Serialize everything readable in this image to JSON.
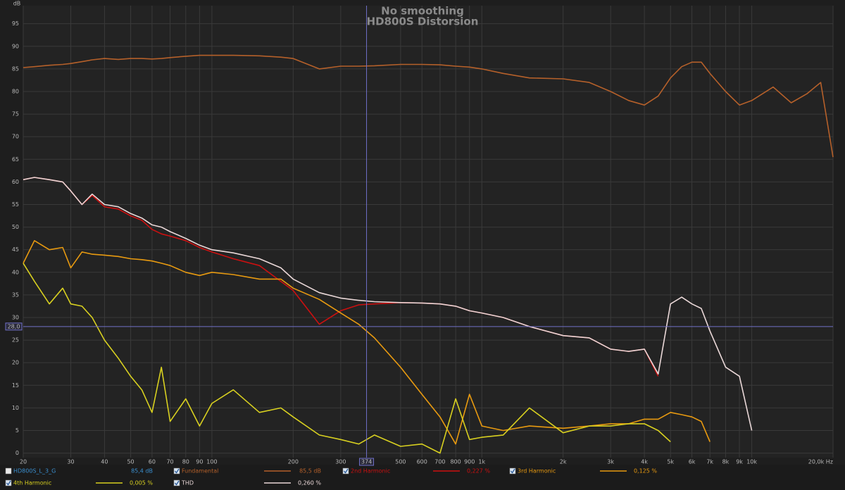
{
  "chart_data": {
    "type": "line",
    "title": "No smoothing",
    "subtitle": "HD800S Distorsion",
    "y_label": "dB",
    "x_scale": "log",
    "grid": true,
    "xlim": [
      20,
      20000
    ],
    "ylim": [
      -1,
      99
    ],
    "yticks": [
      0,
      5,
      10,
      15,
      20,
      25,
      30,
      35,
      40,
      45,
      50,
      55,
      60,
      65,
      70,
      75,
      80,
      85,
      90,
      95
    ],
    "xticks": [
      20,
      30,
      40,
      50,
      60,
      70,
      80,
      90,
      100,
      200,
      300,
      500,
      600,
      700,
      800,
      900,
      {
        "value": 1000,
        "label": "1k"
      },
      {
        "value": 2000,
        "label": "2k"
      },
      {
        "value": 3000,
        "label": "3k"
      },
      {
        "value": 4000,
        "label": "4k"
      },
      {
        "value": 5000,
        "label": "5k"
      },
      {
        "value": 6000,
        "label": "6k"
      },
      {
        "value": 7000,
        "label": "7k"
      },
      {
        "value": 8000,
        "label": "8k"
      },
      {
        "value": 9000,
        "label": "9k"
      },
      {
        "value": 10000,
        "label": "10k"
      },
      {
        "value": 20000,
        "label": "20,0k Hz"
      }
    ],
    "cursor": {
      "x": 374,
      "y": 28,
      "x_label": "374",
      "y_label": "28,0",
      "color": "#7070c8"
    },
    "measurement": {
      "name": "HD800S_L_3_G",
      "readout": "85,4 dB",
      "color": "#3a8fd0"
    },
    "x": [
      20,
      22,
      25,
      28,
      30,
      33,
      36,
      40,
      45,
      50,
      55,
      60,
      65,
      70,
      80,
      90,
      100,
      120,
      150,
      180,
      200,
      250,
      300,
      350,
      400,
      500,
      600,
      700,
      800,
      900,
      1000,
      1200,
      1500,
      2000,
      2500,
      3000,
      3500,
      4000,
      4500,
      5000,
      5500,
      6000,
      6500,
      7000,
      8000,
      9000,
      10000,
      12000,
      14000,
      16000,
      18000,
      20000
    ],
    "series": [
      {
        "name": "Fundamental",
        "readout": "85,5 dB",
        "color": "#b5602a",
        "values": [
          85.3,
          85.5,
          85.8,
          86,
          86.2,
          86.6,
          87,
          87.3,
          87.1,
          87.3,
          87.3,
          87.2,
          87.3,
          87.5,
          87.8,
          88,
          88,
          88,
          87.9,
          87.6,
          87.3,
          85,
          85.6,
          85.6,
          85.7,
          86,
          86,
          85.9,
          85.6,
          85.4,
          85,
          84,
          83,
          82.8,
          82,
          80,
          78,
          77,
          79,
          83,
          85.5,
          86.5,
          86.5,
          84,
          80,
          77,
          78,
          81,
          77.5,
          79.5,
          82,
          65.5
        ]
      },
      {
        "name": "2nd Harmonic",
        "readout": "0,227 %",
        "color": "#cc1010",
        "values": [
          60.5,
          61,
          60.5,
          60,
          58,
          55,
          57,
          54.5,
          54,
          52.5,
          51.5,
          49.5,
          48.5,
          48,
          47,
          45.5,
          44.5,
          43,
          41.5,
          38,
          36,
          28.5,
          31.5,
          32.8,
          33,
          33.3,
          33.2,
          33,
          32.5,
          31.5,
          31,
          30,
          28,
          26,
          25.5,
          23,
          22.5,
          23,
          17,
          null,
          null,
          null,
          null,
          null,
          null,
          null,
          null,
          null,
          null,
          null,
          null,
          null
        ]
      },
      {
        "name": "3rd Harmonic",
        "readout": "0,125 %",
        "color": "#e89a10",
        "values": [
          42,
          47,
          45,
          45.5,
          41,
          44.5,
          44,
          43.8,
          43.5,
          43,
          42.8,
          42.5,
          42,
          41.5,
          40,
          39.3,
          40,
          39.5,
          38.5,
          38.5,
          36.5,
          34,
          31,
          28.5,
          25.5,
          19,
          13,
          8,
          2,
          13,
          6,
          5,
          6,
          5.5,
          6,
          6.5,
          6.5,
          7.5,
          7.5,
          9,
          8.5,
          8,
          7,
          2.5,
          null,
          null,
          null,
          null,
          null,
          null,
          null,
          null
        ]
      },
      {
        "name": "4th Harmonic",
        "readout": "0,005 %",
        "color": "#d8d020",
        "values": [
          42,
          38,
          33,
          36.5,
          33,
          32.5,
          30,
          25,
          21,
          17,
          14,
          9,
          19,
          7,
          12,
          6,
          11,
          14,
          9,
          10,
          8,
          4,
          3,
          2,
          4,
          1.5,
          2,
          0,
          12,
          3,
          3.5,
          4,
          10,
          4.5,
          6,
          6,
          6.5,
          6.5,
          5,
          2.5,
          null,
          null,
          null,
          null,
          null,
          null,
          null,
          null,
          null,
          null,
          null,
          null
        ]
      },
      {
        "name": "THD",
        "readout": "0,260 %",
        "color": "#ead8d8",
        "values": [
          60.5,
          61,
          60.5,
          60,
          58,
          55,
          57.3,
          55,
          54.5,
          53,
          52,
          50.5,
          50,
          49,
          47.5,
          46,
          45,
          44.3,
          43,
          41,
          38.5,
          35.5,
          34.3,
          33.8,
          33.5,
          33.3,
          33.2,
          33,
          32.5,
          31.5,
          31,
          30,
          28,
          26,
          25.5,
          23,
          22.5,
          23,
          17.5,
          33,
          34.5,
          33,
          32,
          27,
          19,
          17,
          5,
          null,
          null,
          null,
          null,
          null
        ]
      }
    ]
  }
}
